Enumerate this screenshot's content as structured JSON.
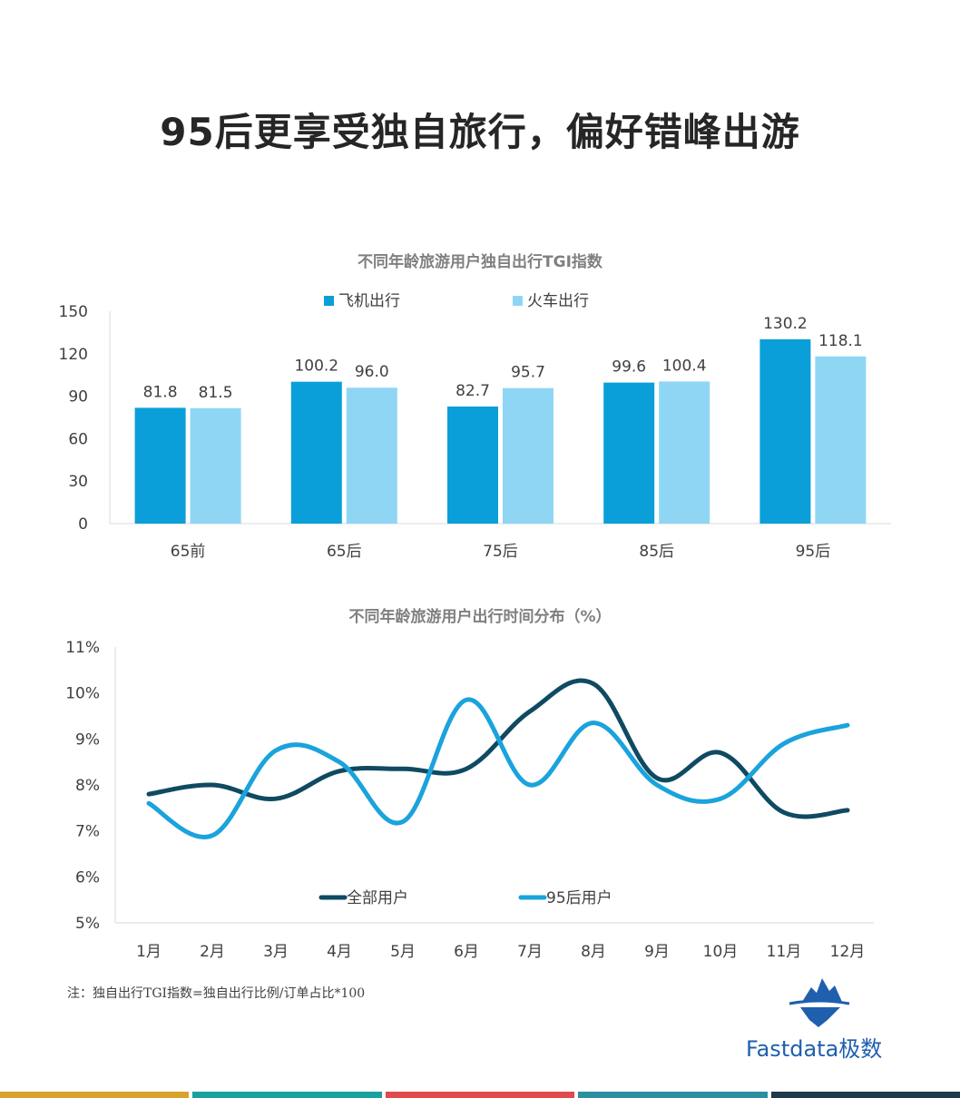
{
  "page": {
    "title": "95后更享受独自旅行，偏好错峰出游",
    "note": "注：独自出行TGI指数=独自出行比例/订单占比*100",
    "logo_text": "Fastdata极数",
    "footer_colors": [
      "#d8a32b",
      "#1aa0a0",
      "#e04a4a",
      "#2a8fa0",
      "#1f3a4a"
    ]
  },
  "chart_data": [
    {
      "type": "bar",
      "title": "不同年龄旅游用户独自出行TGI指数",
      "categories": [
        "65前",
        "65后",
        "75后",
        "85后",
        "95后"
      ],
      "series": [
        {
          "name": "飞机出行",
          "color": "#0a9fd9",
          "values": [
            81.8,
            100.2,
            82.7,
            99.6,
            130.2
          ]
        },
        {
          "name": "火车出行",
          "color": "#8fd6f5",
          "values": [
            81.5,
            96.0,
            95.7,
            100.4,
            118.1
          ]
        }
      ],
      "value_labels": [
        [
          "81.8",
          "100.2",
          "82.7",
          "99.6",
          "130.2"
        ],
        [
          "81.5",
          "96.0",
          "95.7",
          "100.4",
          "118.1"
        ]
      ],
      "ylim": [
        0,
        150
      ],
      "yticks": [
        "0",
        "30",
        "60",
        "90",
        "120",
        "150"
      ],
      "legend_position": "top"
    },
    {
      "type": "line",
      "title": "不同年龄旅游用户出行时间分布（%）",
      "categories": [
        "1月",
        "2月",
        "3月",
        "4月",
        "5月",
        "6月",
        "7月",
        "8月",
        "9月",
        "10月",
        "11月",
        "12月"
      ],
      "series": [
        {
          "name": "全部用户",
          "color": "#0f4a62",
          "values": [
            7.8,
            8.0,
            7.7,
            8.3,
            8.35,
            8.35,
            9.6,
            10.2,
            8.15,
            8.7,
            7.4,
            7.45
          ]
        },
        {
          "name": "95后用户",
          "color": "#1aa3dc",
          "values": [
            7.6,
            6.9,
            8.75,
            8.5,
            7.2,
            9.85,
            8.0,
            9.35,
            8.0,
            7.7,
            8.9,
            9.3
          ]
        }
      ],
      "ylim": [
        5,
        11
      ],
      "yticks": [
        "5%",
        "6%",
        "7%",
        "8%",
        "9%",
        "10%",
        "11%"
      ],
      "legend_position": "bottom-inside"
    }
  ]
}
